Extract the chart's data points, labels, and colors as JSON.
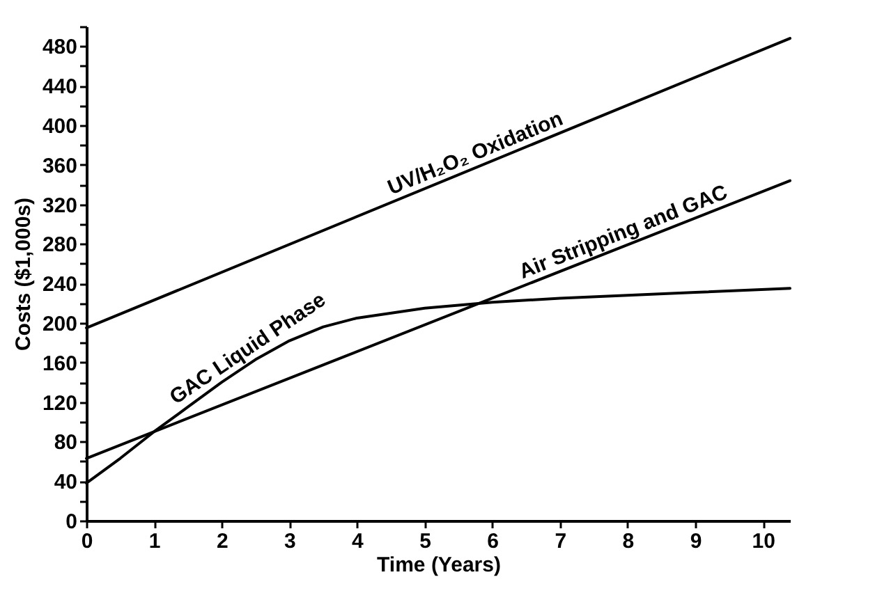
{
  "chart_data": {
    "type": "line",
    "xlabel": "Time (Years)",
    "ylabel": "Costs ($1,000s)",
    "series": [
      {
        "name": "UV/H₂O₂ Oxidation",
        "color": "#000000",
        "x": [
          0,
          10.4
        ],
        "values": [
          195,
          488
        ]
      },
      {
        "name": "Air Stripping and GAC",
        "color": "#000000",
        "x": [
          0,
          10.4
        ],
        "values": [
          63,
          344
        ]
      },
      {
        "name": "GAC Liquid Phase",
        "color": "#000000",
        "x": [
          0,
          0.5,
          1,
          1.5,
          2,
          2.5,
          3,
          3.5,
          4,
          5,
          6,
          7,
          8,
          9,
          10.4
        ],
        "values": [
          38,
          63,
          90,
          115,
          140,
          163,
          182,
          196,
          205,
          215,
          221,
          225,
          228,
          231,
          235
        ]
      }
    ],
    "xlim": [
      0,
      10.4
    ],
    "ylim": [
      0,
      500
    ],
    "xticks": [
      0,
      1,
      2,
      3,
      4,
      5,
      6,
      7,
      8,
      9,
      10
    ],
    "yticks": [
      0,
      {
        "value": 20,
        "label": null
      },
      40,
      {
        "value": 60,
        "label": null
      },
      80,
      {
        "value": 100,
        "label": null
      },
      120,
      {
        "value": 140,
        "label": null
      },
      160,
      {
        "value": 180,
        "label": null
      },
      200,
      {
        "value": 220,
        "label": null
      },
      240,
      {
        "value": 260,
        "label": null
      },
      280,
      {
        "value": 300,
        "label": null
      },
      320,
      {
        "value": 340,
        "label": null
      },
      360,
      {
        "value": 380,
        "label": null
      },
      400,
      {
        "value": 420,
        "label": null
      },
      440,
      {
        "value": 460,
        "label": null
      },
      480,
      {
        "value": 500,
        "label": null
      }
    ],
    "grid": false,
    "legend": false,
    "marker": "none",
    "line_style": "solid"
  }
}
